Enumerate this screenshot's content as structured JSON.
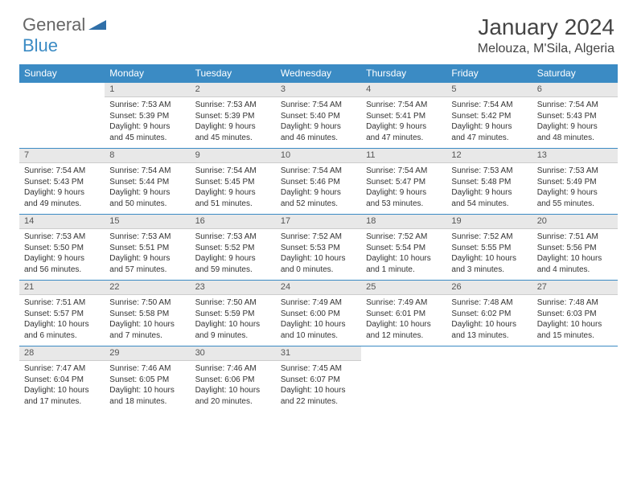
{
  "brand": {
    "general": "General",
    "blue": "Blue"
  },
  "title": "January 2024",
  "location": "Melouza, M'Sila, Algeria",
  "colors": {
    "header_bg": "#3b8bc4",
    "header_text": "#ffffff",
    "daynum_bg": "#e8e8e8",
    "border": "#3b8bc4",
    "text": "#333333"
  },
  "weekdays": [
    "Sunday",
    "Monday",
    "Tuesday",
    "Wednesday",
    "Thursday",
    "Friday",
    "Saturday"
  ],
  "weeks": [
    {
      "nums": [
        "",
        "1",
        "2",
        "3",
        "4",
        "5",
        "6"
      ],
      "cells": [
        null,
        {
          "sunrise": "Sunrise: 7:53 AM",
          "sunset": "Sunset: 5:39 PM",
          "day1": "Daylight: 9 hours",
          "day2": "and 45 minutes."
        },
        {
          "sunrise": "Sunrise: 7:53 AM",
          "sunset": "Sunset: 5:39 PM",
          "day1": "Daylight: 9 hours",
          "day2": "and 45 minutes."
        },
        {
          "sunrise": "Sunrise: 7:54 AM",
          "sunset": "Sunset: 5:40 PM",
          "day1": "Daylight: 9 hours",
          "day2": "and 46 minutes."
        },
        {
          "sunrise": "Sunrise: 7:54 AM",
          "sunset": "Sunset: 5:41 PM",
          "day1": "Daylight: 9 hours",
          "day2": "and 47 minutes."
        },
        {
          "sunrise": "Sunrise: 7:54 AM",
          "sunset": "Sunset: 5:42 PM",
          "day1": "Daylight: 9 hours",
          "day2": "and 47 minutes."
        },
        {
          "sunrise": "Sunrise: 7:54 AM",
          "sunset": "Sunset: 5:43 PM",
          "day1": "Daylight: 9 hours",
          "day2": "and 48 minutes."
        }
      ]
    },
    {
      "nums": [
        "7",
        "8",
        "9",
        "10",
        "11",
        "12",
        "13"
      ],
      "cells": [
        {
          "sunrise": "Sunrise: 7:54 AM",
          "sunset": "Sunset: 5:43 PM",
          "day1": "Daylight: 9 hours",
          "day2": "and 49 minutes."
        },
        {
          "sunrise": "Sunrise: 7:54 AM",
          "sunset": "Sunset: 5:44 PM",
          "day1": "Daylight: 9 hours",
          "day2": "and 50 minutes."
        },
        {
          "sunrise": "Sunrise: 7:54 AM",
          "sunset": "Sunset: 5:45 PM",
          "day1": "Daylight: 9 hours",
          "day2": "and 51 minutes."
        },
        {
          "sunrise": "Sunrise: 7:54 AM",
          "sunset": "Sunset: 5:46 PM",
          "day1": "Daylight: 9 hours",
          "day2": "and 52 minutes."
        },
        {
          "sunrise": "Sunrise: 7:54 AM",
          "sunset": "Sunset: 5:47 PM",
          "day1": "Daylight: 9 hours",
          "day2": "and 53 minutes."
        },
        {
          "sunrise": "Sunrise: 7:53 AM",
          "sunset": "Sunset: 5:48 PM",
          "day1": "Daylight: 9 hours",
          "day2": "and 54 minutes."
        },
        {
          "sunrise": "Sunrise: 7:53 AM",
          "sunset": "Sunset: 5:49 PM",
          "day1": "Daylight: 9 hours",
          "day2": "and 55 minutes."
        }
      ]
    },
    {
      "nums": [
        "14",
        "15",
        "16",
        "17",
        "18",
        "19",
        "20"
      ],
      "cells": [
        {
          "sunrise": "Sunrise: 7:53 AM",
          "sunset": "Sunset: 5:50 PM",
          "day1": "Daylight: 9 hours",
          "day2": "and 56 minutes."
        },
        {
          "sunrise": "Sunrise: 7:53 AM",
          "sunset": "Sunset: 5:51 PM",
          "day1": "Daylight: 9 hours",
          "day2": "and 57 minutes."
        },
        {
          "sunrise": "Sunrise: 7:53 AM",
          "sunset": "Sunset: 5:52 PM",
          "day1": "Daylight: 9 hours",
          "day2": "and 59 minutes."
        },
        {
          "sunrise": "Sunrise: 7:52 AM",
          "sunset": "Sunset: 5:53 PM",
          "day1": "Daylight: 10 hours",
          "day2": "and 0 minutes."
        },
        {
          "sunrise": "Sunrise: 7:52 AM",
          "sunset": "Sunset: 5:54 PM",
          "day1": "Daylight: 10 hours",
          "day2": "and 1 minute."
        },
        {
          "sunrise": "Sunrise: 7:52 AM",
          "sunset": "Sunset: 5:55 PM",
          "day1": "Daylight: 10 hours",
          "day2": "and 3 minutes."
        },
        {
          "sunrise": "Sunrise: 7:51 AM",
          "sunset": "Sunset: 5:56 PM",
          "day1": "Daylight: 10 hours",
          "day2": "and 4 minutes."
        }
      ]
    },
    {
      "nums": [
        "21",
        "22",
        "23",
        "24",
        "25",
        "26",
        "27"
      ],
      "cells": [
        {
          "sunrise": "Sunrise: 7:51 AM",
          "sunset": "Sunset: 5:57 PM",
          "day1": "Daylight: 10 hours",
          "day2": "and 6 minutes."
        },
        {
          "sunrise": "Sunrise: 7:50 AM",
          "sunset": "Sunset: 5:58 PM",
          "day1": "Daylight: 10 hours",
          "day2": "and 7 minutes."
        },
        {
          "sunrise": "Sunrise: 7:50 AM",
          "sunset": "Sunset: 5:59 PM",
          "day1": "Daylight: 10 hours",
          "day2": "and 9 minutes."
        },
        {
          "sunrise": "Sunrise: 7:49 AM",
          "sunset": "Sunset: 6:00 PM",
          "day1": "Daylight: 10 hours",
          "day2": "and 10 minutes."
        },
        {
          "sunrise": "Sunrise: 7:49 AM",
          "sunset": "Sunset: 6:01 PM",
          "day1": "Daylight: 10 hours",
          "day2": "and 12 minutes."
        },
        {
          "sunrise": "Sunrise: 7:48 AM",
          "sunset": "Sunset: 6:02 PM",
          "day1": "Daylight: 10 hours",
          "day2": "and 13 minutes."
        },
        {
          "sunrise": "Sunrise: 7:48 AM",
          "sunset": "Sunset: 6:03 PM",
          "day1": "Daylight: 10 hours",
          "day2": "and 15 minutes."
        }
      ]
    },
    {
      "nums": [
        "28",
        "29",
        "30",
        "31",
        "",
        "",
        ""
      ],
      "cells": [
        {
          "sunrise": "Sunrise: 7:47 AM",
          "sunset": "Sunset: 6:04 PM",
          "day1": "Daylight: 10 hours",
          "day2": "and 17 minutes."
        },
        {
          "sunrise": "Sunrise: 7:46 AM",
          "sunset": "Sunset: 6:05 PM",
          "day1": "Daylight: 10 hours",
          "day2": "and 18 minutes."
        },
        {
          "sunrise": "Sunrise: 7:46 AM",
          "sunset": "Sunset: 6:06 PM",
          "day1": "Daylight: 10 hours",
          "day2": "and 20 minutes."
        },
        {
          "sunrise": "Sunrise: 7:45 AM",
          "sunset": "Sunset: 6:07 PM",
          "day1": "Daylight: 10 hours",
          "day2": "and 22 minutes."
        },
        null,
        null,
        null
      ]
    }
  ]
}
